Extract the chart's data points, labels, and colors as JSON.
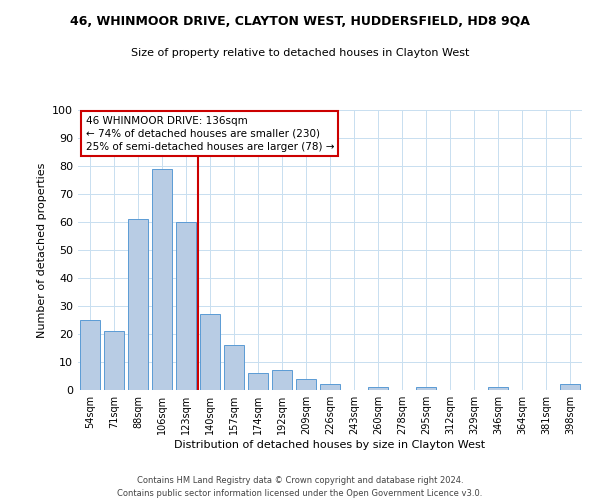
{
  "title": "46, WHINMOOR DRIVE, CLAYTON WEST, HUDDERSFIELD, HD8 9QA",
  "subtitle": "Size of property relative to detached houses in Clayton West",
  "xlabel": "Distribution of detached houses by size in Clayton West",
  "ylabel": "Number of detached properties",
  "categories": [
    "54sqm",
    "71sqm",
    "88sqm",
    "106sqm",
    "123sqm",
    "140sqm",
    "157sqm",
    "174sqm",
    "192sqm",
    "209sqm",
    "226sqm",
    "243sqm",
    "260sqm",
    "278sqm",
    "295sqm",
    "312sqm",
    "329sqm",
    "346sqm",
    "364sqm",
    "381sqm",
    "398sqm"
  ],
  "values": [
    25,
    21,
    61,
    79,
    60,
    27,
    16,
    6,
    7,
    4,
    2,
    0,
    1,
    0,
    1,
    0,
    0,
    1,
    0,
    0,
    2
  ],
  "bar_color": "#b8cce4",
  "bar_edge_color": "#5b9bd5",
  "vline_x_index": 5,
  "vline_color": "#cc0000",
  "ylim": [
    0,
    100
  ],
  "annotation_title": "46 WHINMOOR DRIVE: 136sqm",
  "annotation_line1": "← 74% of detached houses are smaller (230)",
  "annotation_line2": "25% of semi-detached houses are larger (78) →",
  "annotation_box_color": "#ffffff",
  "annotation_box_edge": "#cc0000",
  "footer1": "Contains HM Land Registry data © Crown copyright and database right 2024.",
  "footer2": "Contains public sector information licensed under the Open Government Licence v3.0.",
  "background_color": "#ffffff",
  "grid_color": "#c8dff0"
}
